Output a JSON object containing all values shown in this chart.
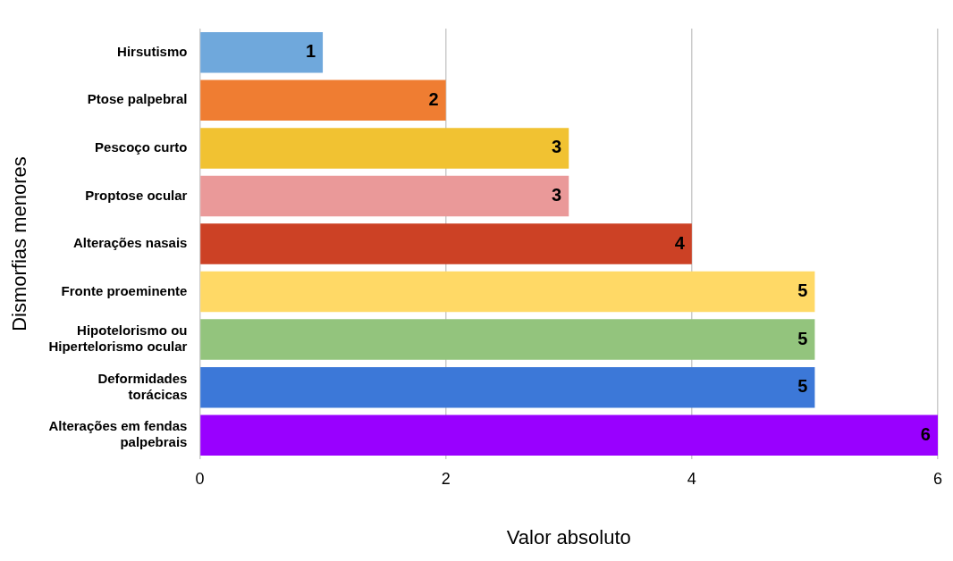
{
  "chart_data": {
    "type": "bar",
    "orientation": "horizontal",
    "xlabel": "Valor absoluto",
    "ylabel": "Dismorfias menores",
    "categories": [
      "Hirsutismo",
      "Ptose palpebral",
      "Pescoço curto",
      "Proptose ocular",
      "Alterações nasais",
      "Fronte proeminente",
      "Hipotelorismo ou Hipertelorismo ocular",
      "Deformidades torácicas",
      "Alterações em fendas palpebrais"
    ],
    "values": [
      1,
      2,
      3,
      3,
      4,
      5,
      5,
      5,
      6
    ],
    "colors": [
      "#6fa8dc",
      "#ef7d32",
      "#f1c232",
      "#ea9999",
      "#cc4125",
      "#ffd966",
      "#93c47d",
      "#3c78d8",
      "#9900ff"
    ],
    "xlim": [
      0,
      6
    ],
    "xticks": [
      0,
      2,
      4,
      6
    ],
    "grid": "x",
    "data_labels": true,
    "legend": false
  }
}
